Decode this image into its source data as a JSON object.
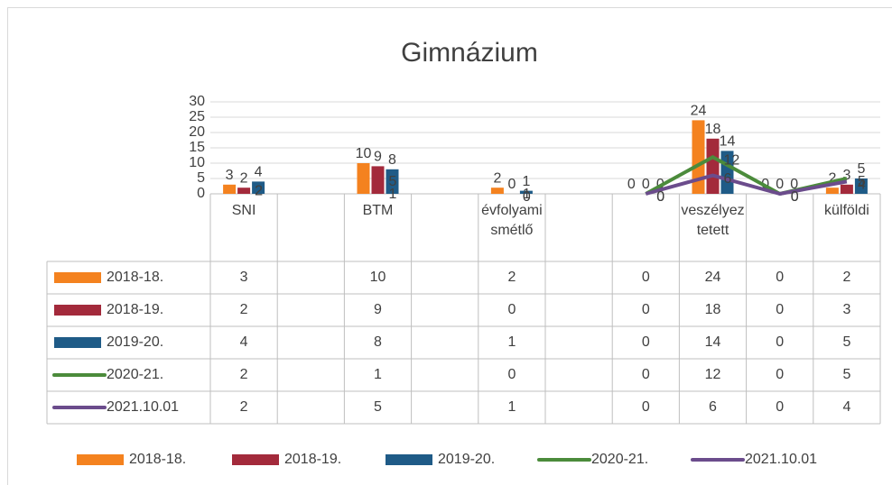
{
  "chart_data": {
    "type": "bar",
    "title": "Gimnázium",
    "categories": [
      "SNI",
      null,
      "BTM",
      null,
      "évfolyami smétlő",
      null,
      null,
      "veszélyez tetett",
      null,
      "külföldi"
    ],
    "series": [
      {
        "name": "2018-18.",
        "type": "bar",
        "color": "#f4821f",
        "values": [
          3,
          null,
          10,
          null,
          2,
          null,
          0,
          24,
          0,
          2
        ]
      },
      {
        "name": "2018-19.",
        "type": "bar",
        "color": "#a32a3b",
        "values": [
          2,
          null,
          9,
          null,
          0,
          null,
          0,
          18,
          0,
          3
        ]
      },
      {
        "name": "2019-20.",
        "type": "bar",
        "color": "#1f5b87",
        "values": [
          4,
          null,
          8,
          null,
          1,
          null,
          0,
          14,
          0,
          5
        ]
      },
      {
        "name": "2020-21.",
        "type": "line",
        "color": "#4b8b3b",
        "values": [
          2,
          null,
          1,
          null,
          0,
          null,
          0,
          12,
          0,
          5
        ]
      },
      {
        "name": "2021.10.01",
        "type": "line",
        "color": "#6b4c8c",
        "values": [
          2,
          null,
          5,
          null,
          1,
          null,
          0,
          6,
          0,
          4
        ]
      }
    ],
    "ylim": [
      0,
      30
    ],
    "yticks": [
      0,
      5,
      10,
      15,
      20,
      25,
      30
    ],
    "grid": true,
    "legend": "bottom"
  }
}
